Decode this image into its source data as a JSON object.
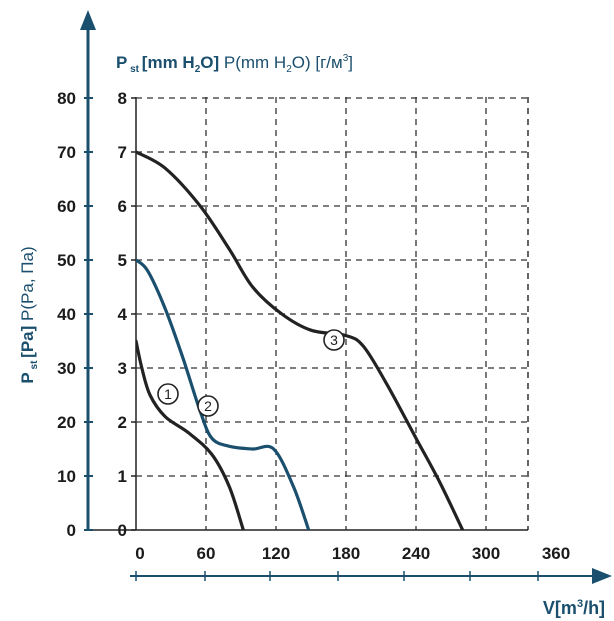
{
  "chart_data": {
    "type": "line",
    "ylabel_left": "P st [Pa] P(Pa, Па)",
    "ylabel_top": "P st [mm H2O] P(mm H2O) [г/м³]",
    "xlabel": "V[m³/h]",
    "pa_ticks": [
      "0",
      "10",
      "20",
      "30",
      "40",
      "50",
      "60",
      "70",
      "80"
    ],
    "mm_ticks": [
      "0",
      "1",
      "2",
      "3",
      "4",
      "5",
      "6",
      "7",
      "8"
    ],
    "x_ticks": [
      "0",
      "60",
      "120",
      "180",
      "240",
      "300",
      "360"
    ],
    "xlim": [
      0,
      420
    ],
    "ylim_pa": [
      0,
      80
    ],
    "grid": true,
    "series": [
      {
        "name": "1",
        "color": "#222222",
        "x": [
          0,
          5,
          12,
          25,
          45,
          65,
          80,
          92
        ],
        "y": [
          35,
          30,
          25,
          21,
          18,
          14,
          8,
          0
        ]
      },
      {
        "name": "2",
        "color": "#1a4f6e",
        "x": [
          0,
          10,
          25,
          40,
          55,
          65,
          80,
          100,
          118,
          135,
          148
        ],
        "y": [
          50,
          48,
          41,
          32,
          22,
          17,
          15.5,
          15,
          15,
          8,
          0
        ]
      },
      {
        "name": "3",
        "color": "#222222",
        "x": [
          0,
          25,
          55,
          80,
          100,
          125,
          150,
          180,
          195,
          215,
          240,
          260,
          280
        ],
        "y": [
          70,
          67,
          60,
          52,
          45,
          40,
          37,
          36,
          34,
          27,
          17,
          9,
          0
        ]
      }
    ]
  }
}
